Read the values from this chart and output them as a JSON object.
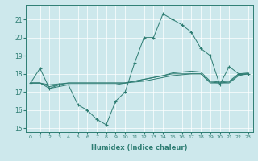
{
  "xlabel": "Humidex (Indice chaleur)",
  "xlim": [
    -0.5,
    23.5
  ],
  "ylim": [
    14.8,
    21.8
  ],
  "yticks": [
    15,
    16,
    17,
    18,
    19,
    20,
    21
  ],
  "xticks": [
    0,
    1,
    2,
    3,
    4,
    5,
    6,
    7,
    8,
    9,
    10,
    11,
    12,
    13,
    14,
    15,
    16,
    17,
    18,
    19,
    20,
    21,
    22,
    23
  ],
  "bg_color": "#cde8ec",
  "line_color": "#2e7d73",
  "grid_color": "#ffffff",
  "main_series": [
    17.5,
    18.3,
    17.2,
    17.4,
    17.4,
    16.3,
    16.0,
    15.5,
    15.2,
    16.5,
    17.0,
    18.6,
    20.0,
    20.0,
    21.3,
    21.0,
    20.7,
    20.3,
    19.4,
    19.0,
    17.4,
    18.4,
    18.0,
    18.0
  ],
  "smooth1": [
    17.5,
    17.5,
    17.2,
    17.3,
    17.4,
    17.4,
    17.4,
    17.4,
    17.4,
    17.4,
    17.5,
    17.6,
    17.7,
    17.8,
    17.9,
    18.0,
    18.0,
    18.0,
    18.0,
    17.5,
    17.5,
    17.5,
    17.9,
    18.0
  ],
  "smooth2": [
    17.5,
    17.5,
    17.3,
    17.4,
    17.5,
    17.5,
    17.5,
    17.5,
    17.5,
    17.5,
    17.5,
    17.6,
    17.7,
    17.8,
    17.9,
    18.05,
    18.1,
    18.15,
    18.1,
    17.6,
    17.55,
    17.6,
    18.0,
    18.05
  ],
  "smooth3": [
    17.5,
    17.5,
    17.4,
    17.45,
    17.5,
    17.5,
    17.5,
    17.5,
    17.5,
    17.5,
    17.5,
    17.55,
    17.6,
    17.7,
    17.8,
    17.9,
    17.95,
    18.0,
    18.0,
    17.55,
    17.5,
    17.55,
    17.95,
    18.0
  ]
}
